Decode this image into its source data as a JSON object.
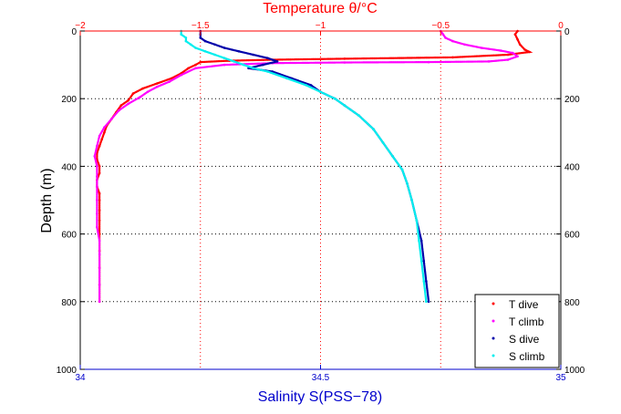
{
  "colors": {
    "temperature_axis": "#ff0000",
    "salinity_axis": "#0000cc",
    "t_dive": "#ff0000",
    "t_climb": "#ff00ff",
    "s_dive": "#0000aa",
    "s_climb": "#00eeee",
    "grid": "#000000",
    "text": "#000000"
  },
  "chart_data": {
    "type": "scatter",
    "title": "Temperature θ/°C",
    "xlabel": "Salinity S(PSS−78)",
    "ylabel": "Depth (m)",
    "grid": true,
    "legend_position": "bottom-right",
    "depth_axis": {
      "range": [
        0,
        1000
      ],
      "reversed": true,
      "ticks": [
        0,
        200,
        400,
        600,
        800,
        1000
      ],
      "tick_labels": [
        "0",
        "200",
        "400",
        "600",
        "800",
        "1000"
      ]
    },
    "temperature_axis": {
      "position": "top",
      "range": [
        -2,
        0
      ],
      "ticks": [
        -2,
        -1.5,
        -1,
        -0.5,
        0
      ],
      "tick_labels": [
        "−2",
        "−1.5",
        "−1",
        "−0.5",
        "0"
      ]
    },
    "salinity_axis": {
      "position": "bottom",
      "range": [
        34,
        35
      ],
      "ticks": [
        34,
        34.5,
        35
      ],
      "tick_labels": [
        "34",
        "34.5",
        "35"
      ]
    },
    "series": [
      {
        "name": "T dive",
        "axis": "temperature",
        "marker": "dot",
        "points": [
          [
            -0.18,
            0
          ],
          [
            -0.19,
            10
          ],
          [
            -0.18,
            25
          ],
          [
            -0.17,
            40
          ],
          [
            -0.15,
            55
          ],
          [
            -0.13,
            62
          ],
          [
            -0.22,
            70
          ],
          [
            -0.45,
            78
          ],
          [
            -0.9,
            82
          ],
          [
            -1.2,
            85
          ],
          [
            -1.38,
            88
          ],
          [
            -1.5,
            92
          ],
          [
            -1.52,
            100
          ],
          [
            -1.55,
            110
          ],
          [
            -1.58,
            125
          ],
          [
            -1.62,
            140
          ],
          [
            -1.68,
            155
          ],
          [
            -1.74,
            170
          ],
          [
            -1.78,
            185
          ],
          [
            -1.8,
            205
          ],
          [
            -1.83,
            220
          ],
          [
            -1.85,
            240
          ],
          [
            -1.87,
            260
          ],
          [
            -1.89,
            280
          ],
          [
            -1.9,
            300
          ],
          [
            -1.91,
            320
          ],
          [
            -1.92,
            340
          ],
          [
            -1.93,
            360
          ],
          [
            -1.93,
            380
          ],
          [
            -1.92,
            400
          ],
          [
            -1.92,
            420
          ],
          [
            -1.93,
            440
          ],
          [
            -1.93,
            460
          ],
          [
            -1.92,
            480
          ],
          [
            -1.92,
            500
          ],
          [
            -1.92,
            530
          ],
          [
            -1.92,
            560
          ],
          [
            -1.92,
            600
          ],
          [
            -1.92,
            650
          ],
          [
            -1.92,
            700
          ],
          [
            -1.92,
            750
          ],
          [
            -1.92,
            800
          ]
        ]
      },
      {
        "name": "T climb",
        "axis": "temperature",
        "marker": "dot",
        "points": [
          [
            -0.5,
            0
          ],
          [
            -0.49,
            10
          ],
          [
            -0.48,
            20
          ],
          [
            -0.45,
            30
          ],
          [
            -0.4,
            40
          ],
          [
            -0.33,
            50
          ],
          [
            -0.25,
            58
          ],
          [
            -0.2,
            65
          ],
          [
            -0.18,
            75
          ],
          [
            -0.22,
            85
          ],
          [
            -0.3,
            90
          ],
          [
            -0.55,
            92
          ],
          [
            -0.9,
            93
          ],
          [
            -1.2,
            95
          ],
          [
            -1.4,
            100
          ],
          [
            -1.52,
            110
          ],
          [
            -1.58,
            130
          ],
          [
            -1.63,
            150
          ],
          [
            -1.68,
            165
          ],
          [
            -1.72,
            180
          ],
          [
            -1.75,
            195
          ],
          [
            -1.8,
            215
          ],
          [
            -1.84,
            235
          ],
          [
            -1.87,
            260
          ],
          [
            -1.9,
            285
          ],
          [
            -1.92,
            310
          ],
          [
            -1.93,
            340
          ],
          [
            -1.94,
            370
          ],
          [
            -1.93,
            400
          ],
          [
            -1.93,
            430
          ],
          [
            -1.93,
            460
          ],
          [
            -1.93,
            500
          ],
          [
            -1.93,
            540
          ],
          [
            -1.93,
            580
          ],
          [
            -1.92,
            620
          ],
          [
            -1.92,
            660
          ],
          [
            -1.92,
            700
          ],
          [
            -1.92,
            750
          ],
          [
            -1.92,
            800
          ]
        ]
      },
      {
        "name": "S dive",
        "axis": "salinity",
        "marker": "dot",
        "points": [
          [
            34.25,
            0
          ],
          [
            34.25,
            10
          ],
          [
            34.25,
            20
          ],
          [
            34.26,
            30
          ],
          [
            34.28,
            40
          ],
          [
            34.3,
            50
          ],
          [
            34.33,
            60
          ],
          [
            34.36,
            70
          ],
          [
            34.39,
            80
          ],
          [
            34.41,
            90
          ],
          [
            34.38,
            100
          ],
          [
            34.35,
            110
          ],
          [
            34.4,
            120
          ],
          [
            34.44,
            140
          ],
          [
            34.48,
            160
          ],
          [
            34.5,
            180
          ],
          [
            34.53,
            200
          ],
          [
            34.55,
            220
          ],
          [
            34.58,
            250
          ],
          [
            34.61,
            290
          ],
          [
            34.63,
            330
          ],
          [
            34.65,
            370
          ],
          [
            34.67,
            410
          ],
          [
            34.68,
            450
          ],
          [
            34.69,
            500
          ],
          [
            34.7,
            560
          ],
          [
            34.71,
            620
          ],
          [
            34.715,
            680
          ],
          [
            34.72,
            740
          ],
          [
            34.725,
            800
          ]
        ]
      },
      {
        "name": "S climb",
        "axis": "salinity",
        "marker": "dot",
        "points": [
          [
            34.21,
            0
          ],
          [
            34.21,
            10
          ],
          [
            34.22,
            20
          ],
          [
            34.22,
            30
          ],
          [
            34.23,
            40
          ],
          [
            34.24,
            50
          ],
          [
            34.26,
            60
          ],
          [
            34.28,
            70
          ],
          [
            34.3,
            80
          ],
          [
            34.32,
            90
          ],
          [
            34.34,
            100
          ],
          [
            34.36,
            110
          ],
          [
            34.39,
            120
          ],
          [
            34.43,
            140
          ],
          [
            34.47,
            160
          ],
          [
            34.5,
            180
          ],
          [
            34.53,
            200
          ],
          [
            34.55,
            220
          ],
          [
            34.58,
            250
          ],
          [
            34.61,
            290
          ],
          [
            34.63,
            330
          ],
          [
            34.65,
            370
          ],
          [
            34.67,
            410
          ],
          [
            34.68,
            450
          ],
          [
            34.69,
            500
          ],
          [
            34.7,
            560
          ],
          [
            34.705,
            620
          ],
          [
            34.71,
            680
          ],
          [
            34.715,
            740
          ],
          [
            34.72,
            800
          ]
        ]
      }
    ]
  }
}
